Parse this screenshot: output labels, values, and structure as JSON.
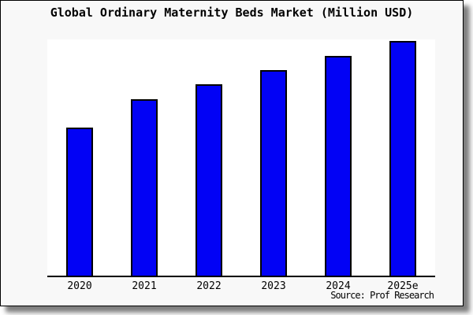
{
  "title": "Global Ordinary Maternity Beds Market (Million USD)",
  "source": "Source: Prof Research",
  "colors": {
    "bar_fill": "#0202f5",
    "bar_border": "#000000",
    "figure_background": "#f8f8f8",
    "plot_background": "#ffffff",
    "axis": "#000000"
  },
  "chart_data": {
    "type": "bar",
    "title": "Global Ordinary Maternity Beds Market (Million USD)",
    "categories": [
      "2020",
      "2021",
      "2022",
      "2023",
      "2024",
      "2025e"
    ],
    "values": [
      63,
      75,
      81.5,
      87.5,
      93.5,
      100
    ],
    "xlabel": "",
    "ylabel": "",
    "ylim": [
      0,
      100.5
    ],
    "grid": false,
    "legend": false,
    "y_axis_labels_shown": false,
    "source_annotation": "Source: Prof Research"
  }
}
